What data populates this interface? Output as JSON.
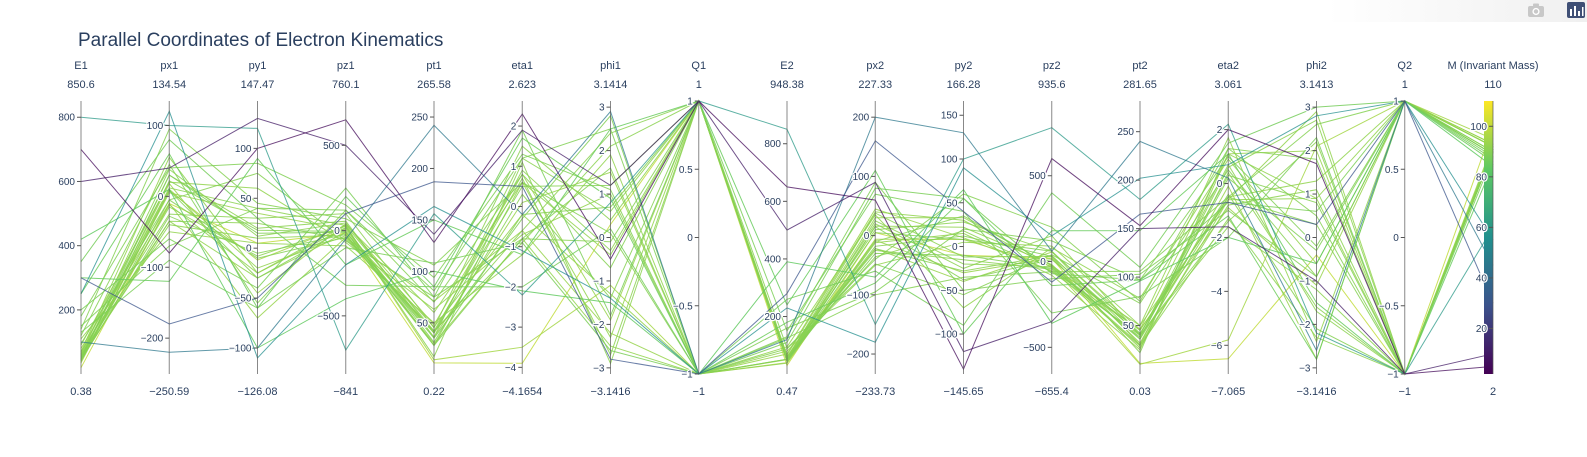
{
  "chart_data": {
    "type": "parallel_coordinates",
    "title": "Parallel Coordinates of Electron Kinematics",
    "colorscale": [
      "#440154",
      "#3b528b",
      "#21908d",
      "#5dc963",
      "#fde725"
    ],
    "color_dimension": "M (Invariant Mass)",
    "dimensions": [
      {
        "label": "E1",
        "max_label": "850.6",
        "min_label": "0.38",
        "range": [
          0.38,
          850.6
        ],
        "ticks": [
          200,
          400,
          600,
          800
        ],
        "tick_labels": [
          "200",
          "400",
          "600",
          "800"
        ]
      },
      {
        "label": "px1",
        "max_label": "134.54",
        "min_label": "−250.59",
        "range": [
          -250.59,
          134.54
        ],
        "ticks": [
          -200,
          -100,
          0,
          100
        ],
        "tick_labels": [
          "−200",
          "−100",
          "0",
          "100"
        ]
      },
      {
        "label": "py1",
        "max_label": "147.47",
        "min_label": "−126.08",
        "range": [
          -126.08,
          147.47
        ],
        "ticks": [
          -100,
          -50,
          0,
          50,
          100
        ],
        "tick_labels": [
          "−100",
          "−50",
          "0",
          "50",
          "100"
        ]
      },
      {
        "label": "pz1",
        "max_label": "760.1",
        "min_label": "−841",
        "range": [
          -841,
          760.1
        ],
        "ticks": [
          -500,
          0,
          500
        ],
        "tick_labels": [
          "−500",
          "0",
          "500"
        ]
      },
      {
        "label": "pt1",
        "max_label": "265.58",
        "min_label": "0.22",
        "range": [
          0.22,
          265.58
        ],
        "ticks": [
          50,
          100,
          150,
          200,
          250
        ],
        "tick_labels": [
          "50",
          "100",
          "150",
          "200",
          "250"
        ]
      },
      {
        "label": "eta1",
        "max_label": "2.623",
        "min_label": "−4.1654",
        "range": [
          -4.1654,
          2.623
        ],
        "ticks": [
          -4,
          -3,
          -2,
          -1,
          0,
          1,
          2
        ],
        "tick_labels": [
          "−4",
          "−3",
          "−2",
          "−1",
          "0",
          "1",
          "2"
        ]
      },
      {
        "label": "phi1",
        "max_label": "3.1414",
        "min_label": "−3.1416",
        "range": [
          -3.1416,
          3.1414
        ],
        "ticks": [
          -3,
          -2,
          -1,
          0,
          1,
          2,
          3
        ],
        "tick_labels": [
          "−3",
          "−2",
          "−1",
          "0",
          "1",
          "2",
          "3"
        ]
      },
      {
        "label": "Q1",
        "max_label": "1",
        "min_label": "−1",
        "range": [
          -1,
          1
        ],
        "ticks": [
          -1,
          -0.5,
          0,
          0.5,
          1
        ],
        "tick_labels": [
          "−1",
          "−0.5",
          "0",
          "0.5",
          "1"
        ]
      },
      {
        "label": "E2",
        "max_label": "948.38",
        "min_label": "0.47",
        "range": [
          0.47,
          948.38
        ],
        "ticks": [
          200,
          400,
          600,
          800
        ],
        "tick_labels": [
          "200",
          "400",
          "600",
          "800"
        ]
      },
      {
        "label": "px2",
        "max_label": "227.33",
        "min_label": "−233.73",
        "range": [
          -233.73,
          227.33
        ],
        "ticks": [
          -200,
          -100,
          0,
          100,
          200
        ],
        "tick_labels": [
          "−200",
          "−100",
          "0",
          "100",
          "200"
        ]
      },
      {
        "label": "py2",
        "max_label": "166.28",
        "min_label": "−145.65",
        "range": [
          -145.65,
          166.28
        ],
        "ticks": [
          -100,
          -50,
          0,
          50,
          100,
          150
        ],
        "tick_labels": [
          "−100",
          "−50",
          "0",
          "50",
          "100",
          "150"
        ]
      },
      {
        "label": "pz2",
        "max_label": "935.6",
        "min_label": "−655.4",
        "range": [
          -655.4,
          935.6
        ],
        "ticks": [
          -500,
          0,
          500
        ],
        "tick_labels": [
          "−500",
          "0",
          "500"
        ]
      },
      {
        "label": "pt2",
        "max_label": "281.65",
        "min_label": "0.03",
        "range": [
          0.03,
          281.65
        ],
        "ticks": [
          50,
          100,
          150,
          200,
          250
        ],
        "tick_labels": [
          "50",
          "100",
          "150",
          "200",
          "250"
        ]
      },
      {
        "label": "eta2",
        "max_label": "3.061",
        "min_label": "−7.065",
        "range": [
          -7.065,
          3.061
        ],
        "ticks": [
          -6,
          -4,
          -2,
          0,
          2
        ],
        "tick_labels": [
          "−6",
          "−4",
          "−2",
          "0",
          "2"
        ]
      },
      {
        "label": "phi2",
        "max_label": "3.1413",
        "min_label": "−3.1416",
        "range": [
          -3.1416,
          3.1413
        ],
        "ticks": [
          -3,
          -2,
          -1,
          0,
          1,
          2,
          3
        ],
        "tick_labels": [
          "−3",
          "−2",
          "−1",
          "0",
          "1",
          "2",
          "3"
        ]
      },
      {
        "label": "Q2",
        "max_label": "1",
        "min_label": "−1",
        "range": [
          -1,
          1
        ],
        "ticks": [
          -1,
          -0.5,
          0,
          0.5,
          1
        ],
        "tick_labels": [
          "−1",
          "−0.5",
          "0",
          "0.5",
          "1"
        ]
      },
      {
        "label": "M (Invariant Mass)",
        "max_label": "110",
        "min_label": "2",
        "range": [
          2,
          110
        ],
        "ticks": [
          20,
          40,
          60,
          80,
          100
        ],
        "tick_labels": [
          "20",
          "40",
          "60",
          "80",
          "100"
        ]
      }
    ],
    "lines": [
      [
        40,
        -5,
        -10,
        -40,
        40,
        0.5,
        1.2,
        1,
        45,
        5,
        8,
        60,
        42,
        -0.4,
        -2.1,
        -1,
        90
      ],
      [
        55,
        10,
        -20,
        -30,
        30,
        -0.8,
        -2.5,
        -1,
        38,
        -12,
        15,
        -80,
        25,
        1.1,
        0.9,
        1,
        92
      ],
      [
        70,
        -25,
        30,
        100,
        45,
        1.5,
        0.4,
        1,
        60,
        20,
        -25,
        150,
        40,
        -1.6,
        -1.2,
        -1,
        91
      ],
      [
        48,
        30,
        15,
        -10,
        35,
        -0.3,
        2.8,
        -1,
        52,
        -30,
        -10,
        -40,
        38,
        0.2,
        -0.3,
        1,
        89
      ],
      [
        200,
        -60,
        -40,
        250,
        75,
        1.9,
        -1.8,
        1,
        150,
        70,
        40,
        -300,
        80,
        -2.0,
        2.3,
        -1,
        88
      ],
      [
        45,
        5,
        35,
        5,
        36,
        0.1,
        1.5,
        -1,
        50,
        -8,
        -30,
        20,
        32,
        -0.1,
        -2.8,
        1,
        93
      ],
      [
        120,
        45,
        -55,
        120,
        70,
        0.8,
        -0.7,
        1,
        90,
        -40,
        60,
        200,
        75,
        1.3,
        0.5,
        -1,
        90
      ],
      [
        60,
        -35,
        25,
        -50,
        42,
        -0.9,
        2.1,
        1,
        47,
        25,
        -20,
        -30,
        30,
        0.4,
        -1.6,
        -1,
        91
      ],
      [
        350,
        80,
        30,
        -320,
        85,
        -2.0,
        0.2,
        -1,
        260,
        -60,
        -90,
        400,
        110,
        1.5,
        3.0,
        1,
        87
      ],
      [
        52,
        -15,
        -8,
        25,
        17,
        1.1,
        -2.9,
        1,
        58,
        10,
        28,
        60,
        30,
        -0.8,
        1.1,
        -1,
        91
      ],
      [
        90,
        20,
        60,
        -70,
        63,
        -0.7,
        1.0,
        -1,
        80,
        -50,
        5,
        90,
        50,
        1.7,
        -2.4,
        1,
        92
      ],
      [
        40,
        8,
        -30,
        15,
        31,
        0.3,
        -1.4,
        1,
        44,
        -10,
        35,
        -25,
        36,
        -0.5,
        0.3,
        -1,
        90
      ],
      [
        150,
        -70,
        40,
        120,
        81,
        1.2,
        2.5,
        -1,
        130,
        90,
        -50,
        -100,
        103,
        -1.0,
        -0.9,
        1,
        89
      ],
      [
        65,
        38,
        12,
        45,
        40,
        0.9,
        -0.3,
        1,
        55,
        -22,
        -28,
        35,
        36,
        0.6,
        2.7,
        -1,
        91
      ],
      [
        80,
        -10,
        -70,
        -40,
        71,
        -0.6,
        -2.2,
        -1,
        70,
        45,
        10,
        -55,
        46,
        -0.9,
        -1.1,
        1,
        93
      ],
      [
        47,
        22,
        18,
        -5,
        28,
        -0.2,
        0.7,
        1,
        49,
        -18,
        12,
        30,
        22,
        1.3,
        1.8,
        -1,
        90
      ],
      [
        110,
        -50,
        5,
        -90,
        50,
        -1.2,
        1.9,
        -1,
        95,
        35,
        -70,
        80,
        78,
        0.9,
        -0.6,
        1,
        92
      ],
      [
        58,
        12,
        40,
        30,
        42,
        0.7,
        -2.7,
        1,
        62,
        -36,
        18,
        -60,
        40,
        -1.4,
        2.2,
        -1,
        91
      ],
      [
        250,
        60,
        -60,
        200,
        85,
        1.7,
        0.9,
        -1,
        180,
        -80,
        55,
        -140,
        97,
        -1.2,
        -2.8,
        1,
        86
      ],
      [
        43,
        -28,
        -5,
        -22,
        28,
        -0.8,
        -0.1,
        1,
        46,
        15,
        -38,
        12,
        41,
        0.3,
        0.8,
        -1,
        90
      ],
      [
        300,
        -120,
        90,
        -200,
        150,
        -1.2,
        2.5,
        1,
        240,
        110,
        -100,
        180,
        148,
        1.1,
        -1.5,
        -1,
        85
      ],
      [
        45,
        -35,
        -30,
        -10,
        46,
        -0.2,
        -1.3,
        -1,
        52,
        30,
        33,
        -22,
        45,
        -0.5,
        1.3,
        1,
        92
      ],
      [
        180,
        40,
        85,
        150,
        94,
        1.3,
        1.1,
        -1,
        160,
        -95,
        20,
        120,
        97,
        1.0,
        -0.2,
        1,
        89
      ],
      [
        55,
        18,
        -45,
        40,
        48,
        0.8,
        -1.9,
        1,
        60,
        -22,
        -40,
        55,
        46,
        1.1,
        2.0,
        -1,
        93
      ],
      [
        130,
        -90,
        -60,
        -100,
        108,
        -0.9,
        -2.6,
        -1,
        110,
        80,
        55,
        -70,
        97,
        -0.7,
        0.6,
        1,
        88
      ],
      [
        62,
        30,
        20,
        55,
        36,
        1.2,
        0.6,
        1,
        58,
        -25,
        -15,
        -45,
        29,
        -1.3,
        -2.3,
        -1,
        91
      ],
      [
        95,
        -5,
        75,
        -60,
        75,
        -0.8,
        1.6,
        -1,
        88,
        -48,
        -55,
        40,
        73,
        0.5,
        -0.9,
        1,
        90
      ],
      [
        70,
        55,
        -25,
        35,
        60,
        0.6,
        -0.4,
        1,
        66,
        40,
        30,
        -35,
        50,
        -0.6,
        2.9,
        -1,
        92
      ],
      [
        420,
        10,
        -100,
        -400,
        100,
        -2.1,
        -1.5,
        -1,
        390,
        -70,
        65,
        -360,
        96,
        -2.0,
        -0.6,
        1,
        84
      ],
      [
        50,
        -40,
        10,
        -25,
        41,
        -0.6,
        2.4,
        1,
        54,
        38,
        -12,
        30,
        40,
        0.7,
        -1.7,
        -1,
        91
      ],
      [
        140,
        95,
        45,
        70,
        106,
        0.6,
        0.1,
        -1,
        125,
        -100,
        -35,
        -60,
        106,
        -0.5,
        2.6,
        1,
        90
      ],
      [
        44,
        -12,
        -25,
        18,
        28,
        0.6,
        -2.3,
        1,
        48,
        16,
        22,
        -18,
        27,
        -0.6,
        0.9,
        -1,
        92
      ],
      [
        800,
        100,
        120,
        -700,
        156,
        -2.2,
        0.8,
        1,
        850,
        -150,
        100,
        780,
        180,
        2.2,
        -2.2,
        -1,
        60
      ],
      [
        300,
        -180,
        -50,
        100,
        187,
        0.5,
        -2.8,
        -1,
        280,
        160,
        40,
        -120,
        165,
        -0.7,
        0.3,
        1,
        30
      ],
      [
        600,
        40,
        130,
        500,
        136,
        1.9,
        1.2,
        1,
        500,
        90,
        -120,
        -350,
        150,
        -1.6,
        -1.0,
        -1,
        10
      ],
      [
        100,
        -220,
        -100,
        -50,
        242,
        -0.2,
        2.9,
        -1,
        120,
        200,
        130,
        60,
        240,
        0.2,
        -2.6,
        1,
        45
      ],
      [
        700,
        -80,
        100,
        650,
        128,
        2.3,
        -0.5,
        1,
        650,
        60,
        -140,
        600,
        153,
        2.0,
        1.7,
        -1,
        5
      ],
      [
        250,
        120,
        -110,
        -200,
        163,
        -1.1,
        -1.4,
        -1,
        230,
        -180,
        90,
        150,
        202,
        0.7,
        2.8,
        1,
        55
      ],
      [
        20,
        -10,
        5,
        -15,
        11,
        -3.9,
        0.3,
        1,
        30,
        5,
        -10,
        20,
        11,
        -6.5,
        -0.4,
        -1,
        100
      ],
      [
        35,
        8,
        -12,
        30,
        14,
        -3.5,
        -1.1,
        -1,
        40,
        -6,
        8,
        -28,
        10,
        -5.8,
        2.1,
        1,
        95
      ]
    ]
  }
}
